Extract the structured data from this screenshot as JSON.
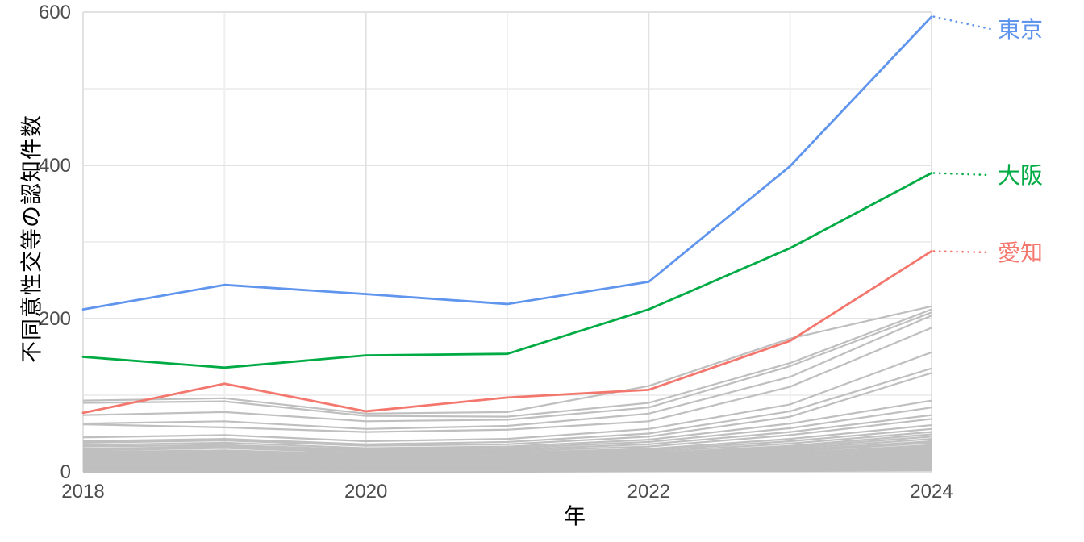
{
  "figure": {
    "background": "#ffffff"
  },
  "chart_data": {
    "type": "line",
    "title": "",
    "xlabel": "年",
    "ylabel": "不同意性交等の認知件数",
    "x": [
      2018,
      2019,
      2020,
      2021,
      2022,
      2023,
      2024
    ],
    "xlim": [
      2018,
      2024
    ],
    "ylim": [
      0,
      600
    ],
    "xticks": [
      2018,
      2020,
      2022,
      2024
    ],
    "xtick_labels": [
      "2018",
      "2020",
      "2022",
      "2024"
    ],
    "x_minor_gridlines": [
      2019,
      2021,
      2023
    ],
    "yticks": [
      0,
      200,
      400,
      600
    ],
    "ytick_labels": [
      "0",
      "200",
      "400",
      "600"
    ],
    "y_minor_gridlines": [
      100,
      300,
      500
    ],
    "grid": true,
    "legend_position": "direct-labels-right",
    "series": [
      {
        "id": "tokyo",
        "name": "東京",
        "color": "#6095EE",
        "label_y": 36,
        "values": [
          212,
          244,
          232,
          219,
          248,
          399,
          594
        ]
      },
      {
        "id": "osaka",
        "name": "大阪",
        "color": "#00AB44",
        "label_y": 217,
        "values": [
          150,
          136,
          152,
          154,
          212,
          292,
          390
        ]
      },
      {
        "id": "aichi",
        "name": "愛知",
        "color": "#F4776E",
        "label_y": 313,
        "values": [
          77,
          115,
          79,
          97,
          107,
          171,
          288
        ]
      }
    ],
    "background_series": {
      "color": "#BFBFBF",
      "values": [
        [
          93,
          96,
          76,
          78,
          112,
          174,
          216
        ],
        [
          90,
          92,
          73,
          72,
          90,
          142,
          212
        ],
        [
          74,
          78,
          66,
          68,
          84,
          138,
          208
        ],
        [
          63,
          66,
          56,
          60,
          76,
          124,
          204
        ],
        [
          62,
          58,
          52,
          55,
          66,
          111,
          188
        ],
        [
          45,
          48,
          40,
          43,
          56,
          88,
          156
        ],
        [
          40,
          43,
          36,
          39,
          50,
          79,
          135
        ],
        [
          38,
          41,
          34,
          36,
          46,
          72,
          129
        ],
        [
          35,
          38,
          31,
          33,
          42,
          63,
          93
        ],
        [
          33,
          35,
          29,
          31,
          39,
          57,
          84
        ],
        [
          30,
          33,
          27,
          29,
          36,
          52,
          74
        ],
        [
          28,
          31,
          25,
          27,
          33,
          48,
          69
        ],
        [
          26,
          28,
          23,
          25,
          30,
          43,
          61
        ],
        [
          24,
          26,
          22,
          23,
          28,
          40,
          56
        ],
        [
          22,
          24,
          20,
          21,
          26,
          37,
          52
        ],
        [
          21,
          22,
          19,
          20,
          24,
          34,
          49
        ],
        [
          19,
          21,
          17,
          18,
          22,
          32,
          46
        ],
        [
          18,
          19,
          16,
          17,
          21,
          30,
          43
        ],
        [
          16,
          18,
          15,
          16,
          19,
          28,
          40
        ],
        [
          15,
          16,
          14,
          15,
          18,
          26,
          38
        ],
        [
          14,
          15,
          13,
          14,
          17,
          24,
          35
        ],
        [
          13,
          14,
          12,
          13,
          16,
          22,
          33
        ],
        [
          12,
          13,
          11,
          12,
          15,
          21,
          31
        ],
        [
          11,
          12,
          10,
          11,
          14,
          19,
          29
        ],
        [
          10,
          11,
          9,
          10,
          13,
          18,
          27
        ],
        [
          9,
          10,
          9,
          9,
          12,
          17,
          25
        ],
        [
          9,
          9,
          8,
          8,
          11,
          16,
          23
        ],
        [
          8,
          9,
          7,
          8,
          10,
          15,
          21
        ],
        [
          7,
          8,
          7,
          7,
          9,
          14,
          20
        ],
        [
          7,
          7,
          6,
          6,
          9,
          13,
          18
        ],
        [
          6,
          7,
          6,
          6,
          8,
          12,
          17
        ],
        [
          5,
          6,
          5,
          5,
          7,
          11,
          15
        ],
        [
          5,
          5,
          5,
          5,
          7,
          10,
          14
        ],
        [
          4,
          5,
          4,
          4,
          6,
          9,
          13
        ],
        [
          4,
          4,
          4,
          4,
          5,
          8,
          11
        ],
        [
          3,
          4,
          3,
          3,
          5,
          7,
          10
        ],
        [
          3,
          3,
          3,
          3,
          4,
          6,
          9
        ],
        [
          2,
          3,
          2,
          2,
          4,
          6,
          8
        ],
        [
          2,
          2,
          2,
          2,
          3,
          5,
          7
        ],
        [
          1,
          2,
          1,
          2,
          3,
          4,
          6
        ],
        [
          1,
          1,
          1,
          1,
          2,
          3,
          5
        ],
        [
          1,
          1,
          1,
          1,
          2,
          3,
          4
        ],
        [
          0,
          1,
          0,
          1,
          1,
          2,
          3
        ],
        [
          0,
          0,
          0,
          0,
          1,
          1,
          2
        ]
      ]
    },
    "colors": {
      "grid_major": "#E2E2E2",
      "grid_minor": "#EFEFEF",
      "tick_text": "#4D4D4D",
      "axis_title_text": "#000000"
    }
  }
}
